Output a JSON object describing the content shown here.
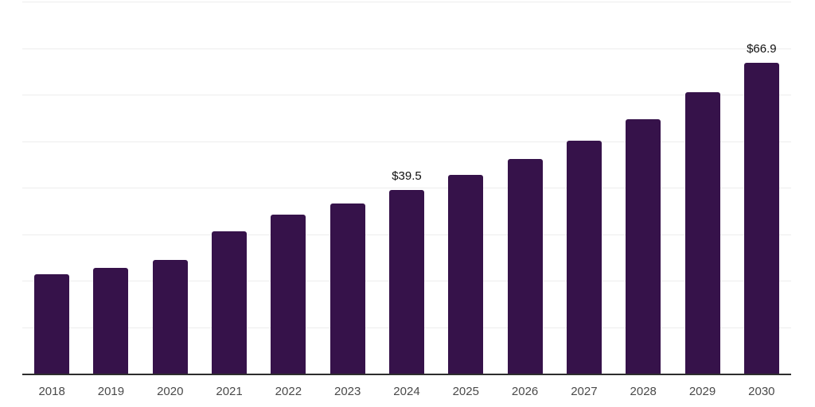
{
  "chart_data": {
    "type": "bar",
    "title": "",
    "xlabel": "",
    "ylabel": "",
    "categories": [
      "2018",
      "2019",
      "2020",
      "2021",
      "2022",
      "2023",
      "2024",
      "2025",
      "2026",
      "2027",
      "2028",
      "2029",
      "2030"
    ],
    "values": [
      21.3,
      22.8,
      24.4,
      30.6,
      34.2,
      36.6,
      39.5,
      42.7,
      46.1,
      50.1,
      54.7,
      60.5,
      66.9
    ],
    "data_labels": {
      "2024": "$39.5",
      "2030": "$66.9"
    },
    "ylim": [
      0,
      80
    ],
    "grid_step": 10,
    "grid": "on",
    "legend": "none",
    "y_axis_tick_labels": "none",
    "colors": {
      "bar": "#36124A",
      "gridline": "#ededed",
      "axis_line": "#2e2e2e",
      "tick_label": "#4a4a4a",
      "data_label": "#111111",
      "background": "#ffffff"
    }
  }
}
